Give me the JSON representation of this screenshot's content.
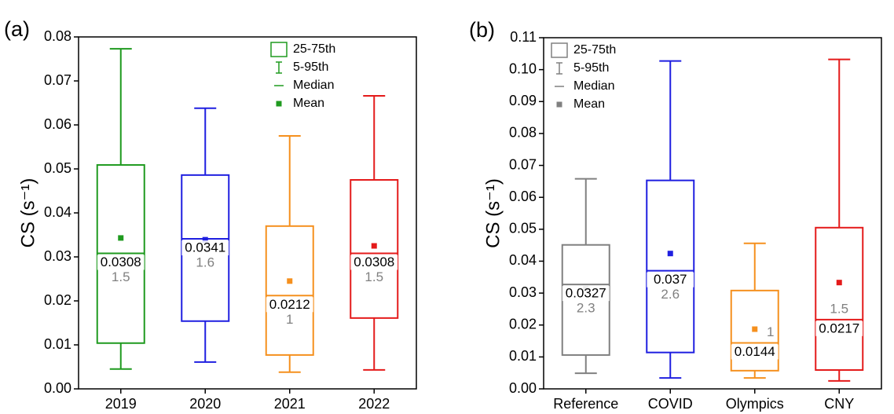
{
  "chart_data": [
    {
      "type": "box",
      "panel_label": "(a)",
      "ylabel": "CS (s⁻¹)",
      "categories": [
        "2019",
        "2020",
        "2021",
        "2022"
      ],
      "colors": [
        "#1f9a1f",
        "#1f1fe0",
        "#f5901e",
        "#e41a1a"
      ],
      "whisker_low": [
        0.0045,
        0.0061,
        0.0038,
        0.0043
      ],
      "q1": [
        0.0104,
        0.0154,
        0.0077,
        0.0161
      ],
      "median": [
        0.0308,
        0.0341,
        0.0212,
        0.0308
      ],
      "q3": [
        0.0509,
        0.0486,
        0.037,
        0.0475
      ],
      "whisker_high": [
        0.0773,
        0.0638,
        0.0575,
        0.0666
      ],
      "mean": [
        0.0343,
        0.0339,
        0.0245,
        0.0325
      ],
      "ratio_labels": [
        "1.5",
        "1.6",
        "1",
        "1.5"
      ],
      "ylim": [
        0,
        0.08
      ],
      "yticks": [
        {
          "value": 0,
          "label": "0.00"
        },
        {
          "value": 0.01,
          "label": "0.01"
        },
        {
          "value": 0.02,
          "label": "0.02"
        },
        {
          "value": 0.03,
          "label": "0.03"
        },
        {
          "value": 0.04,
          "label": "0.04"
        },
        {
          "value": 0.05,
          "label": "0.05"
        },
        {
          "value": 0.06,
          "label": "0.06"
        },
        {
          "value": 0.07,
          "label": "0.07"
        },
        {
          "value": 0.08,
          "label": "0.08"
        }
      ],
      "legend": {
        "labels": [
          "25-75th",
          "5-95th",
          "Median",
          "Mean"
        ],
        "color": "#1f9a1f",
        "position": "upper right"
      }
    },
    {
      "type": "box",
      "panel_label": "(b)",
      "ylabel": "CS (s⁻¹)",
      "categories": [
        "Reference",
        "COVID",
        "Olympics",
        "CNY"
      ],
      "colors": [
        "#808080",
        "#1f1fe0",
        "#f5901e",
        "#e41a1a"
      ],
      "whisker_low": [
        0.0049,
        0.0034,
        0.0034,
        0.0025
      ],
      "q1": [
        0.0106,
        0.0114,
        0.0057,
        0.0059
      ],
      "median": [
        0.0327,
        0.037,
        0.0144,
        0.0217
      ],
      "q3": [
        0.0451,
        0.0653,
        0.0308,
        0.0505
      ],
      "whisker_high": [
        0.0658,
        0.1027,
        0.0456,
        0.1032
      ],
      "mean": [
        0.0313,
        0.0424,
        0.0187,
        0.0333
      ],
      "ratio_labels": [
        "2.3",
        "2.6",
        "1",
        "1.5"
      ],
      "ylim": [
        0,
        0.11
      ],
      "yticks": [
        {
          "value": 0,
          "label": "0.00"
        },
        {
          "value": 0.01,
          "label": "0.01"
        },
        {
          "value": 0.02,
          "label": "0.02"
        },
        {
          "value": 0.03,
          "label": "0.03"
        },
        {
          "value": 0.04,
          "label": "0.04"
        },
        {
          "value": 0.05,
          "label": "0.05"
        },
        {
          "value": 0.06,
          "label": "0.06"
        },
        {
          "value": 0.07,
          "label": "0.07"
        },
        {
          "value": 0.08,
          "label": "0.08"
        },
        {
          "value": 0.09,
          "label": "0.09"
        },
        {
          "value": 0.1,
          "label": "0.10"
        },
        {
          "value": 0.11,
          "label": "0.11"
        }
      ],
      "legend": {
        "labels": [
          "25-75th",
          "5-95th",
          "Median",
          "Mean"
        ],
        "color": "#808080",
        "position": "upper left"
      }
    }
  ]
}
